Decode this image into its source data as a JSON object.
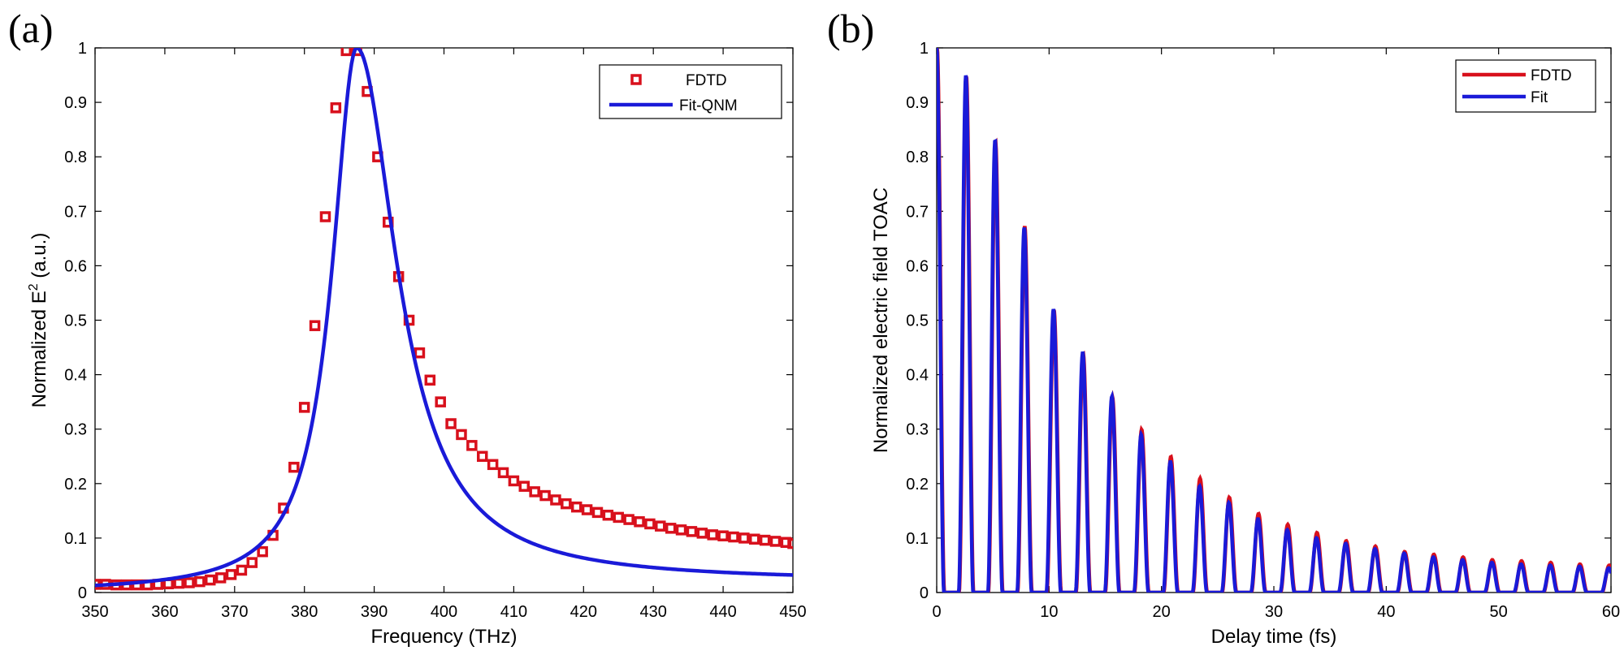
{
  "panels": {
    "a_letter": "(a)",
    "b_letter": "(b)"
  },
  "colors": {
    "fdtd": "#d8101c",
    "fit": "#1a1ad8",
    "axis": "#000000"
  },
  "chart_data": [
    {
      "id": "a",
      "type": "scatter",
      "title": "",
      "xlabel": "Frequency (THz)",
      "ylabel_main": "Normalized E",
      "ylabel_sup": "2",
      "ylabel_unit": " (a.u.)",
      "xlim": [
        350,
        450
      ],
      "ylim": [
        0,
        1
      ],
      "xticks": [
        350,
        360,
        370,
        380,
        390,
        400,
        410,
        420,
        430,
        440,
        450
      ],
      "yticks": [
        0,
        0.1,
        0.2,
        0.3,
        0.4,
        0.5,
        0.6,
        0.7,
        0.8,
        0.9,
        1
      ],
      "xtick_labels": [
        "350",
        "360",
        "370",
        "380",
        "390",
        "400",
        "410",
        "420",
        "430",
        "440",
        "450"
      ],
      "ytick_labels": [
        "0",
        "0.1",
        "0.2",
        "0.3",
        "0.4",
        "0.5",
        "0.6",
        "0.7",
        "0.8",
        "0.9",
        "1"
      ],
      "legend_position": "top-right",
      "series": [
        {
          "name": "FDTD",
          "style": "square-markers",
          "x": [
            350,
            351.5,
            353,
            354.5,
            356,
            357.5,
            359,
            360.5,
            362,
            363.5,
            365,
            366.5,
            368,
            369.5,
            371,
            372.5,
            374,
            375.5,
            377,
            378.5,
            380,
            381.5,
            383,
            384.5,
            386,
            387.5,
            389,
            390.5,
            392,
            393.5,
            395,
            396.5,
            398,
            399.5,
            401,
            402.5,
            404,
            405.5,
            407,
            408.5,
            410,
            411.5,
            413,
            414.5,
            416,
            417.5,
            419,
            420.5,
            422,
            423.5,
            425,
            426.5,
            428,
            429.5,
            431,
            432.5,
            434,
            435.5,
            437,
            438.5,
            440,
            441.5,
            443,
            444.5,
            446,
            447.5,
            449,
            450
          ],
          "y": [
            0.015,
            0.015,
            0.014,
            0.014,
            0.014,
            0.014,
            0.015,
            0.016,
            0.017,
            0.018,
            0.02,
            0.023,
            0.027,
            0.033,
            0.041,
            0.055,
            0.075,
            0.105,
            0.155,
            0.23,
            0.34,
            0.49,
            0.69,
            0.89,
            0.995,
            0.995,
            0.92,
            0.8,
            0.68,
            0.58,
            0.5,
            0.44,
            0.39,
            0.35,
            0.31,
            0.29,
            0.27,
            0.25,
            0.235,
            0.22,
            0.205,
            0.195,
            0.185,
            0.178,
            0.17,
            0.163,
            0.157,
            0.152,
            0.147,
            0.142,
            0.138,
            0.134,
            0.13,
            0.126,
            0.122,
            0.118,
            0.115,
            0.112,
            0.109,
            0.106,
            0.104,
            0.102,
            0.1,
            0.098,
            0.096,
            0.094,
            0.092,
            0.09
          ]
        },
        {
          "name": "Fit-QNM",
          "style": "line",
          "model": "lorentzian",
          "peak_x": 387.5,
          "peak_y": 1,
          "gamma_left": 4.3,
          "gamma_right": 7.0,
          "tail_amp_left": 0,
          "tail_amp_right": 0.02,
          "x_samples": 401
        }
      ]
    },
    {
      "id": "b",
      "type": "line",
      "title": "",
      "xlabel": "Delay time (fs)",
      "ylabel": "Normalized electric field TOAC",
      "xlim": [
        0,
        60
      ],
      "ylim": [
        0,
        1
      ],
      "xticks": [
        0,
        10,
        20,
        30,
        40,
        50,
        60
      ],
      "yticks": [
        0,
        0.1,
        0.2,
        0.3,
        0.4,
        0.5,
        0.6,
        0.7,
        0.8,
        0.9,
        1
      ],
      "xtick_labels": [
        "0",
        "10",
        "20",
        "30",
        "40",
        "50",
        "60"
      ],
      "ytick_labels": [
        "0",
        "0.1",
        "0.2",
        "0.3",
        "0.4",
        "0.5",
        "0.6",
        "0.7",
        "0.8",
        "0.9",
        "1"
      ],
      "legend_position": "top-right",
      "oscillation": {
        "period_fs": 2.6,
        "decay_tau_fs": 20.5,
        "offset": 0.03
      },
      "series": [
        {
          "name": "FDTD",
          "style": "line",
          "peak_values": [
            1.0,
            0.95,
            0.83,
            0.675,
            0.52,
            0.44,
            0.36,
            0.3,
            0.25,
            0.21,
            0.175,
            0.145,
            0.125,
            0.11,
            0.095,
            0.085,
            0.075,
            0.07,
            0.065,
            0.06,
            0.058,
            0.055,
            0.052,
            0.05
          ]
        },
        {
          "name": "Fit",
          "style": "line",
          "peak_values": [
            1.0,
            0.95,
            0.83,
            0.67,
            0.52,
            0.44,
            0.36,
            0.29,
            0.24,
            0.195,
            0.165,
            0.135,
            0.115,
            0.1,
            0.09,
            0.08,
            0.072,
            0.065,
            0.06,
            0.055,
            0.052,
            0.05,
            0.048,
            0.045
          ]
        }
      ]
    }
  ]
}
